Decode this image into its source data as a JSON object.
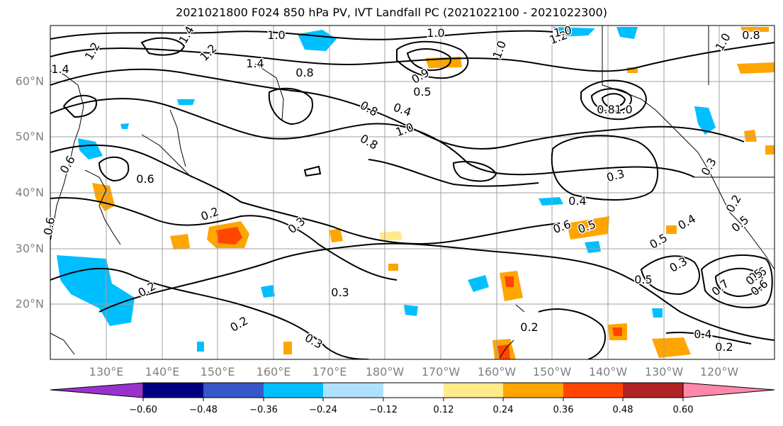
{
  "title": "2021021800 F024 850 hPa PV, IVT Landfall PC (2021022100 - 2021022300)",
  "lat_labels": [
    "60°N",
    "50°N",
    "40°N",
    "30°N",
    "20°N"
  ],
  "lon_labels": [
    "130°E",
    "140°E",
    "150°E",
    "160°E",
    "170°E",
    "180°W",
    "170°W",
    "160°W",
    "150°W",
    "140°W",
    "130°W",
    "120°W"
  ],
  "colorbar": {
    "ticks": [
      "−0.60",
      "−0.48",
      "−0.36",
      "−0.24",
      "−0.12",
      "0.12",
      "0.24",
      "0.36",
      "0.48",
      "0.60"
    ],
    "colors": [
      "#9932cc",
      "#000080",
      "#3557c8",
      "#00bfff",
      "#b0e0ff",
      "#ffffff",
      "#ffea8a",
      "#ffa500",
      "#ff4500",
      "#b22222",
      "#ff88aa"
    ]
  },
  "contour_labels": [
    "1.0",
    "1.2",
    "1.4",
    "1.2",
    "1.0",
    "1.0",
    "1.2",
    "1.0",
    "1.4",
    "1.4",
    "0.8",
    "0.9",
    "0.5",
    "0.8",
    "0.4",
    "1.0",
    "0.8",
    "1.0",
    "1.0",
    "0.8",
    "0.6",
    "0.6",
    "0.8",
    "0.3",
    "0.4",
    "0.6",
    "0.5",
    "0.2",
    "0.3",
    "0.3",
    "0.5",
    "0.4",
    "0.5",
    "0.3",
    "0.5",
    "0.7",
    "0.6",
    "0.2",
    "0.2",
    "0.3",
    "0.2",
    "0.2",
    "0.4",
    "0.2",
    "0.3",
    "0.6",
    "0.5",
    "0.6"
  ],
  "colors": {
    "land_line": "#000000",
    "grid": "#a0a0a0",
    "axis_label": "#808080"
  }
}
